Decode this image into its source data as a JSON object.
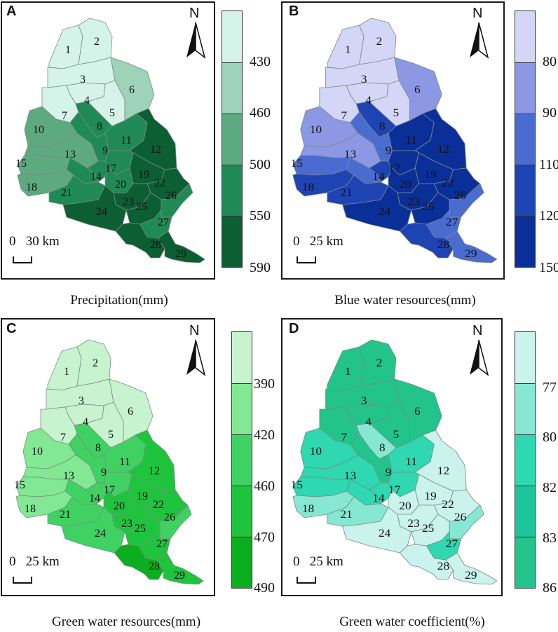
{
  "panels": [
    {
      "letter": "A",
      "north": "N",
      "scale": "0   30 km",
      "caption": "Precipitation(mm)",
      "legend_labels": [
        "430",
        "460",
        "500",
        "550",
        "590"
      ],
      "legend_colors": [
        "#d5f3e9",
        "#9dd3b9",
        "#5eaa80",
        "#1f8a55",
        "#0c5e33"
      ],
      "class_colors": [
        "#d5f3e9",
        "#d5f3e9",
        "#d5f3e9",
        "#d5f3e9",
        "#d5f3e9",
        "#9dd3b9",
        "#d5f3e9",
        "#1f8a55",
        "#1f8a55",
        "#5eaa80",
        "#1f8a55",
        "#0c5e33",
        "#5eaa80",
        "#1f8a55",
        "#5eaa80",
        "#1f8a55",
        "#1f8a55",
        "#5eaa80",
        "#0c5e33",
        "#1f8a55",
        "#1f8a55",
        "#0c5e33",
        "#0c5e33",
        "#0c5e33",
        "#0c5e33",
        "#1f8a55",
        "#1f8a55",
        "#0c5e33",
        "#0c5e33"
      ]
    },
    {
      "letter": "B",
      "north": "N",
      "scale": "0   25 km",
      "caption": "Blue water resources(mm)",
      "legend_labels": [
        "80",
        "90",
        "110",
        "120",
        "150"
      ],
      "legend_colors": [
        "#d4d6f7",
        "#8c98e4",
        "#4a6bd0",
        "#1e44b4",
        "#0b2f98"
      ],
      "class_colors": [
        "#d4d6f7",
        "#d4d6f7",
        "#d4d6f7",
        "#d4d6f7",
        "#d4d6f7",
        "#8c98e4",
        "#d4d6f7",
        "#1e44b4",
        "#4a6bd0",
        "#8c98e4",
        "#0b2f98",
        "#0b2f98",
        "#8c98e4",
        "#4a6bd0",
        "#4a6bd0",
        "#1e44b4",
        "#0b2f98",
        "#1e44b4",
        "#0b2f98",
        "#0b2f98",
        "#1e44b4",
        "#0b2f98",
        "#0b2f98",
        "#0b2f98",
        "#0b2f98",
        "#4a6bd0",
        "#4a6bd0",
        "#1e44b4",
        "#4a6bd0"
      ]
    },
    {
      "letter": "C",
      "north": "N",
      "scale": "0   25 km",
      "caption": "Green water resources(mm)",
      "legend_labels": [
        "390",
        "420",
        "460",
        "470",
        "490"
      ],
      "legend_colors": [
        "#c7f3cf",
        "#82e894",
        "#3fd262",
        "#1fc43d",
        "#0aae1e"
      ],
      "class_colors": [
        "#c7f3cf",
        "#c7f3cf",
        "#c7f3cf",
        "#c7f3cf",
        "#c7f3cf",
        "#c7f3cf",
        "#c7f3cf",
        "#3fd262",
        "#3fd262",
        "#82e894",
        "#3fd262",
        "#1fc43d",
        "#82e894",
        "#3fd262",
        "#82e894",
        "#3fd262",
        "#3fd262",
        "#82e894",
        "#1fc43d",
        "#1fc43d",
        "#3fd262",
        "#1fc43d",
        "#1fc43d",
        "#3fd262",
        "#1fc43d",
        "#3fd262",
        "#1fc43d",
        "#0aae1e",
        "#1fc43d"
      ]
    },
    {
      "letter": "D",
      "north": "N",
      "scale": "0   25 km",
      "caption": "Green water coefficient(%)",
      "legend_labels": [
        "77",
        "80",
        "82",
        "83",
        "86"
      ],
      "legend_colors": [
        "#c9f3ec",
        "#86e8d3",
        "#2ed8b1",
        "#1cc69a",
        "#22c48c"
      ],
      "class_colors": [
        "#22c48c",
        "#22c48c",
        "#22c48c",
        "#22c48c",
        "#22c48c",
        "#22c48c",
        "#22c48c",
        "#86e8d3",
        "#22c48c",
        "#2ed8b1",
        "#2ed8b1",
        "#c9f3ec",
        "#2ed8b1",
        "#2ed8b1",
        "#2ed8b1",
        "#2ed8b1",
        "#2ed8b1",
        "#86e8d3",
        "#c9f3ec",
        "#c9f3ec",
        "#86e8d3",
        "#c9f3ec",
        "#c9f3ec",
        "#c9f3ec",
        "#c9f3ec",
        "#86e8d3",
        "#2ed8b1",
        "#c9f3ec",
        "#c9f3ec"
      ]
    }
  ]
}
